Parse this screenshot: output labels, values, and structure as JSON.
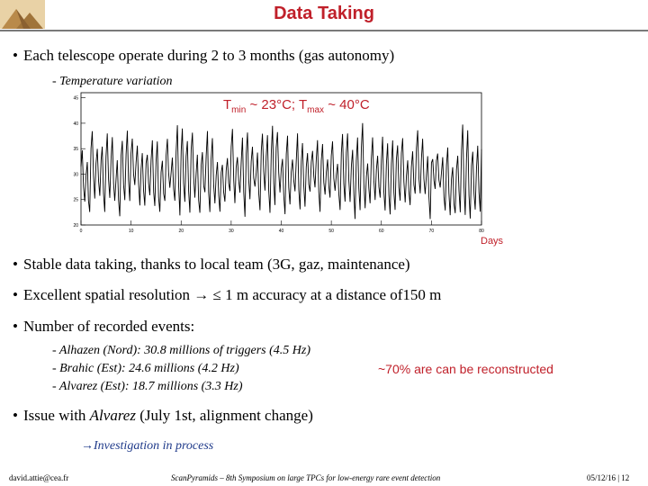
{
  "title": "Data Taking",
  "bullets": {
    "b1": "Each telescope operate during 2 to 3 months (gas autonomy)",
    "b1_sub": "- Temperature variation",
    "b2": "Stable data taking, thanks to local team (3G, gaz, maintenance)",
    "b3": "Excellent spatial resolution → ≤ 1 m accuracy at a distance of150 m",
    "b4": "Number of recorded events:",
    "b4_items": [
      "- Alhazen (Nord): 30.8 millions of triggers (4.5 Hz)",
      "- Brahic (Est): 24.6 millions (4.2 Hz)",
      "- Alvarez (Est): 18.7 millions (3.3 Hz)"
    ],
    "b4_note": "~70% are can be reconstructed",
    "b5_prefix": "Issue with ",
    "b5_em": "Alvarez",
    "b5_suffix": " (July 1st, alignment change)",
    "b5_sub": "→Investigation in process"
  },
  "chart_note": {
    "t": "T",
    "min": "min",
    "mid": " ~ 23°C; T",
    "max": "max",
    "end": " ~ 40°C"
  },
  "chart_data": {
    "type": "line",
    "xlabel": "Days",
    "ylabel": "",
    "xlim": [
      0,
      80
    ],
    "ylim": [
      20,
      46
    ],
    "x_ticks": [
      "0",
      "10",
      "20",
      "30",
      "40",
      "50",
      "60",
      "70",
      "80"
    ],
    "y_ticks": [
      "20",
      "25",
      "30",
      "35",
      "40",
      "45"
    ],
    "series": [
      {
        "daily_min_approx": 23,
        "daily_max_approx": 40,
        "samples_per_day": 4,
        "days": 80
      }
    ]
  },
  "footer": {
    "left": "david.attie@cea.fr",
    "center": "ScanPyramids – 8th Symposium on large TPCs for low-energy rare event detection",
    "right": "05/12/16 | 12"
  },
  "colors": {
    "title": "#c0202a",
    "note": "#c0202a",
    "link": "#1f3a8a",
    "rule": "#7a7a7a"
  }
}
